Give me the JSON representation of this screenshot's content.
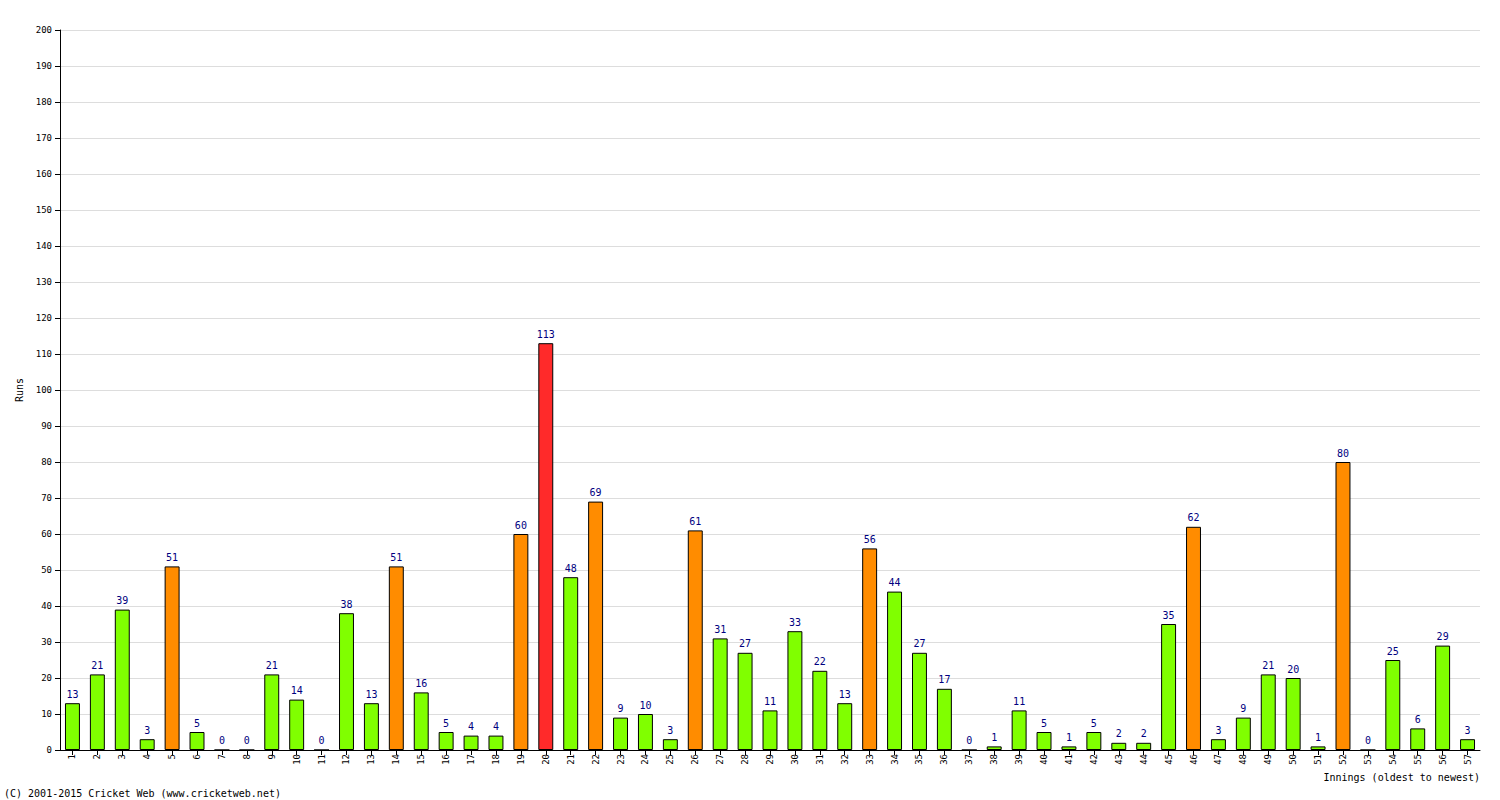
{
  "chart_data": {
    "type": "bar",
    "x_label": "Innings (oldest to newest)",
    "y_label": "Runs",
    "annotations": [
      "(C) 2001-2015 Cricket Web (www.cricketweb.net)"
    ],
    "categories": [
      "1",
      "2",
      "3",
      "4",
      "5",
      "6",
      "7",
      "8",
      "9",
      "10",
      "11",
      "12",
      "13",
      "14",
      "15",
      "16",
      "17",
      "18",
      "19",
      "20",
      "21",
      "22",
      "23",
      "24",
      "25",
      "26",
      "27",
      "28",
      "29",
      "30",
      "31",
      "32",
      "33",
      "34",
      "35",
      "36",
      "37",
      "38",
      "39",
      "40",
      "41",
      "42",
      "43",
      "44",
      "45",
      "46",
      "47",
      "48",
      "49",
      "50",
      "51",
      "52",
      "53",
      "54",
      "55",
      "56",
      "57"
    ],
    "values": [
      13,
      21,
      39,
      3,
      51,
      5,
      0,
      0,
      21,
      14,
      0,
      38,
      13,
      51,
      16,
      5,
      4,
      4,
      60,
      113,
      48,
      69,
      9,
      10,
      3,
      61,
      31,
      27,
      11,
      33,
      22,
      13,
      56,
      44,
      27,
      17,
      0,
      1,
      11,
      5,
      1,
      5,
      2,
      2,
      35,
      62,
      3,
      9,
      21,
      20,
      1,
      80,
      0,
      25,
      6,
      29,
      3
    ],
    "colors": [
      "#80ff00",
      "#80ff00",
      "#80ff00",
      "#80ff00",
      "#ff8c00",
      "#80ff00",
      "#80ff00",
      "#80ff00",
      "#80ff00",
      "#80ff00",
      "#80ff00",
      "#80ff00",
      "#80ff00",
      "#ff8c00",
      "#80ff00",
      "#80ff00",
      "#80ff00",
      "#80ff00",
      "#ff8c00",
      "#ff2a2a",
      "#80ff00",
      "#ff8c00",
      "#80ff00",
      "#80ff00",
      "#80ff00",
      "#ff8c00",
      "#80ff00",
      "#80ff00",
      "#80ff00",
      "#80ff00",
      "#80ff00",
      "#80ff00",
      "#ff8c00",
      "#80ff00",
      "#80ff00",
      "#80ff00",
      "#80ff00",
      "#80ff00",
      "#80ff00",
      "#80ff00",
      "#80ff00",
      "#80ff00",
      "#80ff00",
      "#80ff00",
      "#80ff00",
      "#ff8c00",
      "#80ff00",
      "#80ff00",
      "#80ff00",
      "#80ff00",
      "#80ff00",
      "#ff8c00",
      "#80ff00",
      "#80ff00",
      "#80ff00",
      "#80ff00",
      "#80ff00"
    ],
    "ylim": [
      0,
      200
    ],
    "yticks": [
      0,
      10,
      20,
      30,
      40,
      50,
      60,
      70,
      80,
      90,
      100,
      110,
      120,
      130,
      140,
      150,
      160,
      170,
      180,
      190,
      200
    ],
    "grid": true,
    "data_labels": true
  }
}
